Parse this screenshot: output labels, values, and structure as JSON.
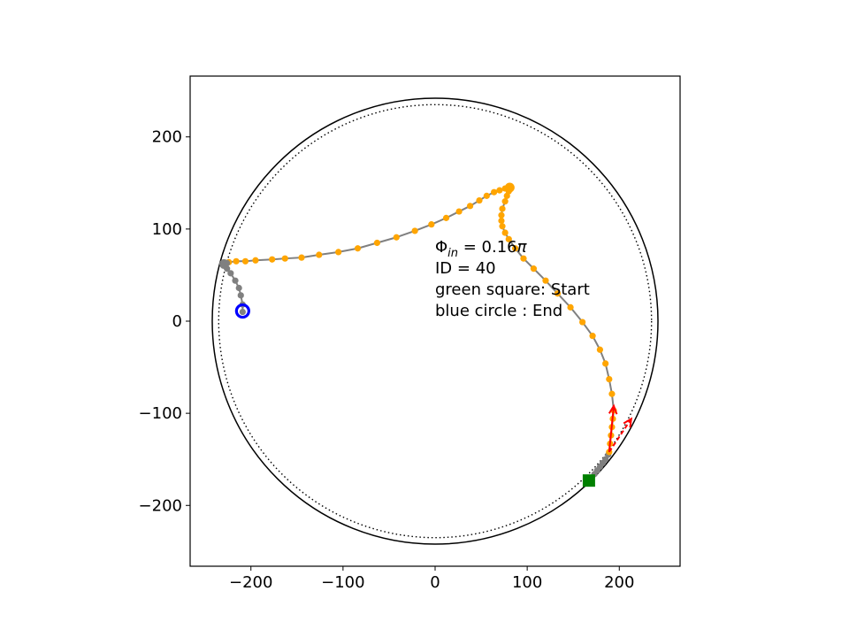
{
  "chart_data": {
    "type": "scatter",
    "title": "",
    "xlabel": "",
    "ylabel": "",
    "xlim": [
      -266,
      266
    ],
    "ylim": [
      -266,
      266
    ],
    "grid": false,
    "x_ticks": [
      -200,
      -100,
      0,
      100,
      200
    ],
    "y_ticks": [
      -200,
      -100,
      0,
      100,
      200
    ],
    "x_tick_labels": [
      "−200",
      "−100",
      "0",
      "100",
      "200"
    ],
    "y_tick_labels": [
      "−200",
      "−100",
      "0",
      "100",
      "200"
    ],
    "boundary_circles": [
      {
        "radius": 242,
        "style": "solid",
        "color": "#000000"
      },
      {
        "radius": 235,
        "style": "dotted",
        "color": "#000000"
      }
    ],
    "trajectory_line_color": "#808080",
    "segments": [
      {
        "phase": "start-grey",
        "color": "#808080",
        "points": [
          [
            167,
            -173
          ],
          [
            170,
            -170
          ],
          [
            173,
            -166
          ],
          [
            176,
            -162
          ],
          [
            179,
            -158
          ],
          [
            182,
            -154
          ],
          [
            185,
            -150
          ],
          [
            188,
            -145
          ]
        ]
      },
      {
        "phase": "orange-1",
        "color": "#ffa500",
        "points": [
          [
            189,
            -142
          ],
          [
            190,
            -133
          ],
          [
            191,
            -124
          ],
          [
            192,
            -115
          ],
          [
            193,
            -106
          ],
          [
            194,
            -97
          ],
          [
            192,
            -79
          ],
          [
            189,
            -63
          ],
          [
            185,
            -46
          ],
          [
            179,
            -31
          ],
          [
            171,
            -16
          ],
          [
            160,
            -1
          ],
          [
            147,
            15
          ],
          [
            133,
            30
          ],
          [
            120,
            44
          ],
          [
            107,
            57
          ],
          [
            96,
            68
          ],
          [
            87,
            79
          ],
          [
            80,
            89
          ],
          [
            76,
            96
          ],
          [
            73,
            103
          ],
          [
            72,
            109
          ],
          [
            72,
            115
          ],
          [
            73,
            122
          ],
          [
            76,
            130
          ],
          [
            78,
            136
          ],
          [
            80,
            141
          ]
        ]
      },
      {
        "phase": "orange-2",
        "color": "#ffa500",
        "points": [
          [
            81,
            145
          ],
          [
            76,
            144
          ],
          [
            70,
            142
          ],
          [
            64,
            140
          ],
          [
            56,
            136
          ],
          [
            48,
            131
          ],
          [
            38,
            125
          ],
          [
            26,
            119
          ],
          [
            12,
            112
          ],
          [
            -4,
            105
          ],
          [
            -22,
            98
          ],
          [
            -42,
            91
          ],
          [
            -63,
            85
          ],
          [
            -84,
            79
          ],
          [
            -105,
            75
          ],
          [
            -126,
            72
          ],
          [
            -145,
            69
          ],
          [
            -163,
            68
          ],
          [
            -177,
            67
          ],
          [
            -195,
            66
          ],
          [
            -206,
            65
          ],
          [
            -216,
            65
          ],
          [
            -224,
            64
          ]
        ]
      },
      {
        "phase": "end-grey",
        "color": "#808080",
        "points": [
          [
            -226,
            63
          ],
          [
            -229,
            62
          ],
          [
            -226,
            57
          ],
          [
            -222,
            52
          ],
          [
            -217,
            44
          ],
          [
            -213,
            36
          ],
          [
            -211,
            28
          ],
          [
            -209,
            18
          ],
          [
            -209,
            10
          ]
        ]
      }
    ],
    "markers": {
      "start": {
        "label": "Start",
        "shape": "square",
        "color": "#008000",
        "x": 167,
        "y": -173
      },
      "end": {
        "label": "End",
        "shape": "circle",
        "color": "#0000ff",
        "x": -209,
        "y": 11
      },
      "turn_1": {
        "shape": "circle",
        "color": "#ffa500",
        "x": 81,
        "y": 145
      },
      "turn_2": {
        "shape": "circle",
        "color": "#808080",
        "x": -229,
        "y": 62
      }
    },
    "arrows": [
      {
        "color": "#ff0000",
        "from": [
          189,
          -142
        ],
        "to": [
          194,
          -92
        ],
        "style": "solid"
      },
      {
        "color": "#ff0000",
        "from": [
          189,
          -142
        ],
        "to": [
          213,
          -106
        ],
        "style": "dashed"
      }
    ],
    "annotation": {
      "phi_symbol": "Φ",
      "phi_subscript": "in",
      "phi_equals": " = 0.16",
      "phi_pi": "π",
      "id_line": "ID = 40",
      "start_line": "green square: Start",
      "end_line": "blue circle : End",
      "x": 0,
      "y": 75
    }
  }
}
